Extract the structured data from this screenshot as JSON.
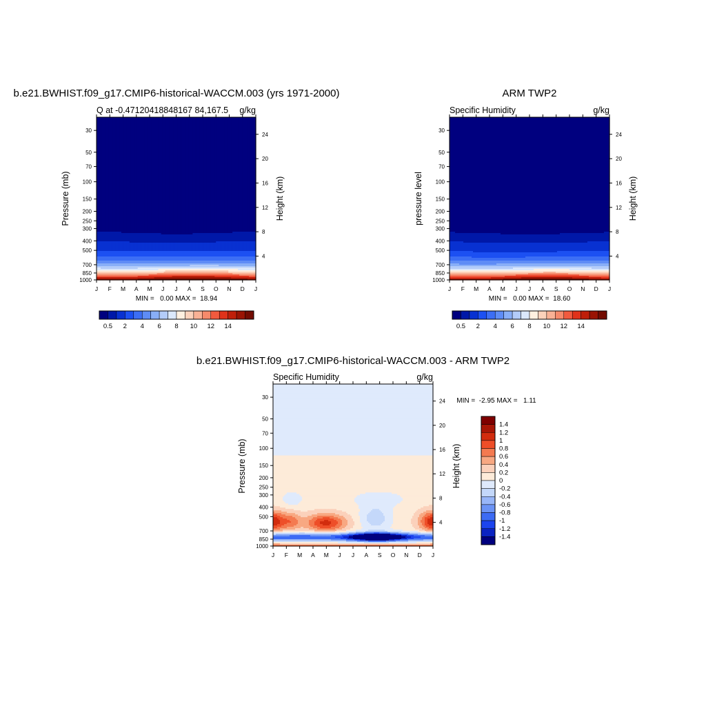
{
  "colors": {
    "q_palette": [
      "#00007f",
      "#0018a8",
      "#0831d1",
      "#1c50f2",
      "#3c6ef5",
      "#5e8cf6",
      "#88aef7",
      "#b3ccf9",
      "#dbe8fb",
      "#fff0e0",
      "#fcd2bb",
      "#f9b195",
      "#f68a6b",
      "#f15a3e",
      "#e0321a",
      "#bf1f0a",
      "#9a1404",
      "#730c02"
    ],
    "d_palette": [
      "#00007f",
      "#0a23c2",
      "#1c44ee",
      "#3c6bf4",
      "#6b93f5",
      "#98b6f8",
      "#c4d8fa",
      "#dfeafc",
      "#fdebd9",
      "#fbd1bb",
      "#f8a882",
      "#f47a50",
      "#ee4e28",
      "#d22c0e",
      "#a81606",
      "#7f0000"
    ]
  },
  "chart_data": [
    {
      "type": "heatmap",
      "title": "b.e21.BWHIST.f09_g17.CMIP6-historical-WACCM.003 (yrs 1971-2000)",
      "subtitle_left": "Q at -0.47120418848167 84,167.5",
      "subtitle_right": "g/kg",
      "ylabel": "Pressure (mb)",
      "ylabel_right": "Height (km)",
      "x_ticks": [
        "J",
        "F",
        "M",
        "A",
        "M",
        "J",
        "J",
        "A",
        "S",
        "O",
        "N",
        "D",
        "J"
      ],
      "y_ticks": [
        30,
        50,
        70,
        100,
        150,
        200,
        250,
        300,
        400,
        500,
        700,
        850,
        1000
      ],
      "y_right_ticks": [
        24,
        20,
        16,
        12,
        8,
        4
      ],
      "stats": "MIN =   0.00 MAX =  18.94",
      "min": 0.0,
      "max": 18.94,
      "colorbar_labels": [
        "0.5",
        "2",
        "4",
        "6",
        "8",
        "10",
        "12",
        "14"
      ]
    },
    {
      "type": "heatmap",
      "title": "ARM TWP2",
      "subtitle_left": "Specific Humidity",
      "subtitle_right": "g/kg",
      "ylabel": "pressure level",
      "ylabel_right": "Height (km)",
      "x_ticks": [
        "J",
        "F",
        "M",
        "A",
        "M",
        "J",
        "J",
        "A",
        "S",
        "O",
        "N",
        "D",
        "J"
      ],
      "y_ticks": [
        30,
        50,
        70,
        100,
        150,
        200,
        250,
        300,
        400,
        500,
        700,
        850,
        1000
      ],
      "y_right_ticks": [
        24,
        20,
        16,
        12,
        8,
        4
      ],
      "stats": "MIN =   0.00 MAX =  18.60",
      "min": 0.0,
      "max": 18.6,
      "colorbar_labels": [
        "0.5",
        "2",
        "4",
        "6",
        "8",
        "10",
        "12",
        "14"
      ]
    },
    {
      "type": "heatmap",
      "title": "b.e21.BWHIST.f09_g17.CMIP6-historical-WACCM.003 - ARM TWP2",
      "subtitle_left": "Specific Humidity",
      "subtitle_right": "g/kg",
      "ylabel": "Pressure (mb)",
      "ylabel_right": "Height (km)",
      "x_ticks": [
        "J",
        "F",
        "M",
        "A",
        "M",
        "J",
        "J",
        "A",
        "S",
        "O",
        "N",
        "D",
        "J"
      ],
      "y_ticks": [
        30,
        50,
        70,
        100,
        150,
        200,
        250,
        300,
        400,
        500,
        700,
        850,
        1000
      ],
      "y_right_ticks": [
        24,
        20,
        16,
        12,
        8,
        4
      ],
      "stats": "MIN =  -2.95 MAX =   1.11",
      "min": -2.95,
      "max": 1.11,
      "colorbar_labels": [
        "1.4",
        "1.2",
        "1",
        "0.8",
        "0.6",
        "0.4",
        "0.2",
        "0",
        "-0.2",
        "-0.4",
        "-0.6",
        "-0.8",
        "-1",
        "-1.2",
        "-1.4"
      ]
    }
  ]
}
